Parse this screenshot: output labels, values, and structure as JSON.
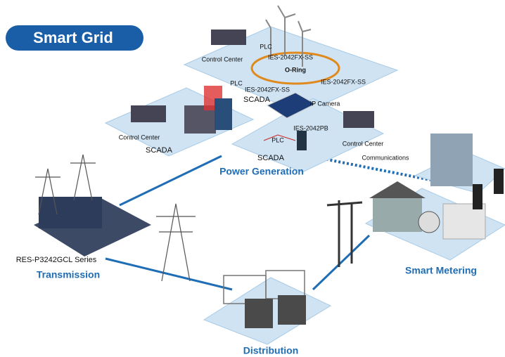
{
  "header": {
    "title": "Smart Grid"
  },
  "power_generation": {
    "title": "Power Generation",
    "labels": [
      "Control Center",
      "PLC",
      "IES-2042FX-SS",
      "O-Ring",
      "PLC",
      "IES-2042FX-SS",
      "IES-2042FX-SS",
      "SCADA",
      "Control Center",
      "SCADA",
      "IP Camera",
      "IES-2042PB",
      "PLC",
      "Control Center",
      "SCADA"
    ]
  },
  "communications": {
    "label": "Communications"
  },
  "transmission": {
    "title": "Transmission",
    "product": "RES-P3242GCL Series"
  },
  "distribution": {
    "title": "Distribution"
  },
  "smart_metering": {
    "title": "Smart Metering"
  }
}
